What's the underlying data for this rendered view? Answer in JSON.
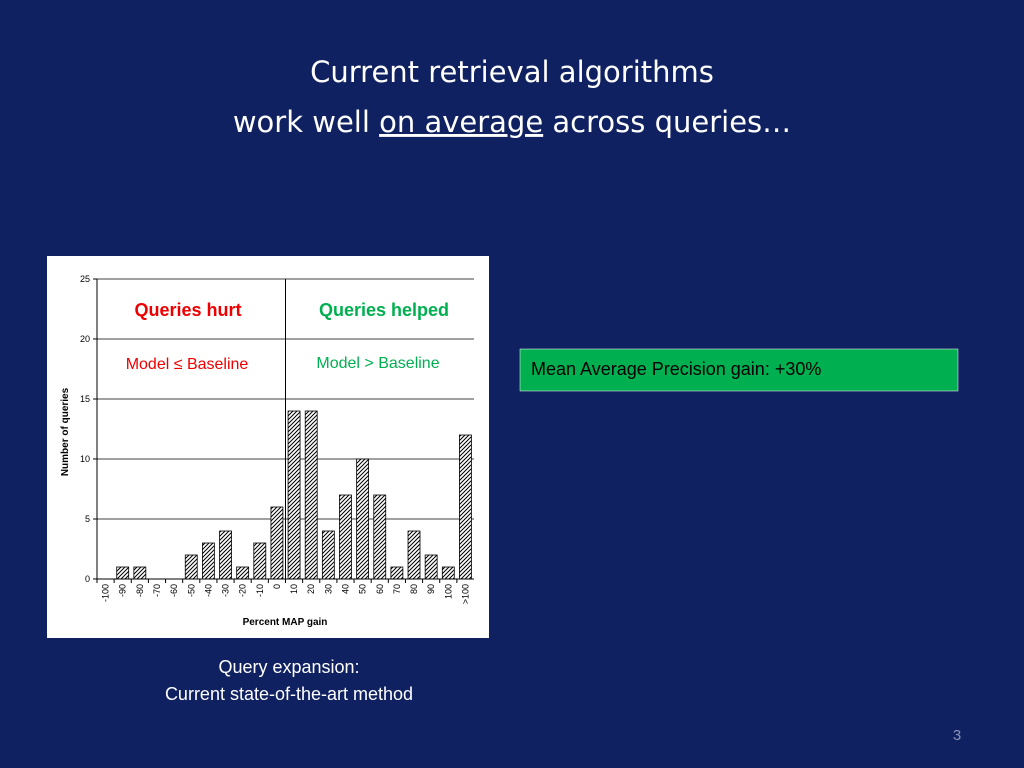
{
  "title": {
    "line1": "Current retrieval algorithms",
    "line2": {
      "before": "work well",
      "emphasis": "on average",
      "after": "across queries…"
    }
  },
  "chart_data": {
    "type": "bar",
    "categories": [
      "-100",
      "-90",
      "-80",
      "-70",
      "-60",
      "-50",
      "-40",
      "-30",
      "-20",
      "-10",
      "0",
      "10",
      "20",
      "30",
      "40",
      "50",
      "60",
      "70",
      "80",
      "90",
      "100",
      ">100"
    ],
    "values": [
      0,
      1,
      1,
      0,
      0,
      2,
      3,
      4,
      1,
      3,
      6,
      14,
      14,
      4,
      7,
      10,
      7,
      1,
      4,
      2,
      1,
      12
    ],
    "color": "#000000",
    "xlabel": "Percent MAP gain",
    "ylabel": "Number of queries",
    "ylim": [
      0,
      25
    ],
    "yticks": [
      0,
      5,
      10,
      15,
      20,
      25
    ],
    "grid": true,
    "annotations": [
      {
        "text": "Queries hurt",
        "color": "#ee0000"
      },
      {
        "text": "Queries helped",
        "color": "#00b050"
      },
      {
        "text": "Model ≤ Baseline",
        "color": "#ee0000"
      },
      {
        "text": "Model > Baseline",
        "color": "#00b050"
      }
    ]
  },
  "summary_box": {
    "text": "Mean Average Precision gain: +30%",
    "color": "#00b050"
  },
  "caption": {
    "line1": "Query expansion:",
    "line2": "Current state-of-the-art method"
  },
  "page_number": "3"
}
